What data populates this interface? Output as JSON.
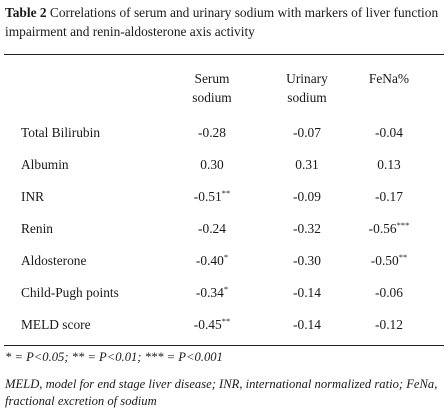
{
  "caption": {
    "label": "Table 2",
    "text": " Correlations of serum and urinary sodium with markers of liver function impairment and renin-aldosterone axis activity"
  },
  "headers": {
    "col1_line1": "Serum",
    "col1_line2": "sodium",
    "col2_line1": "Urinary",
    "col2_line2": "sodium",
    "col3": "FeNa%"
  },
  "rows": [
    {
      "label": "Total Bilirubin",
      "serum": "-0.28",
      "serum_sig": "",
      "urinary": "-0.07",
      "urinary_sig": "",
      "fena": "-0.04",
      "fena_sig": ""
    },
    {
      "label": "Albumin",
      "serum": "0.30",
      "serum_sig": "",
      "urinary": "0.31",
      "urinary_sig": "",
      "fena": "0.13",
      "fena_sig": ""
    },
    {
      "label": "INR",
      "serum": "-0.51",
      "serum_sig": "**",
      "urinary": "-0.09",
      "urinary_sig": "",
      "fena": "-0.17",
      "fena_sig": ""
    },
    {
      "label": "Renin",
      "serum": "-0.24",
      "serum_sig": "",
      "urinary": "-0.32",
      "urinary_sig": "",
      "fena": "-0.56",
      "fena_sig": "***"
    },
    {
      "label": "Aldosterone",
      "serum": "-0.40",
      "serum_sig": "*",
      "urinary": "-0.30",
      "urinary_sig": "",
      "fena": "-0.50",
      "fena_sig": "**"
    },
    {
      "label": "Child-Pugh points",
      "serum": "-0.34",
      "serum_sig": "*",
      "urinary": "-0.14",
      "urinary_sig": "",
      "fena": "-0.06",
      "fena_sig": ""
    },
    {
      "label": "MELD score",
      "serum": "-0.45",
      "serum_sig": "**",
      "urinary": "-0.14",
      "urinary_sig": "",
      "fena": "-0.12",
      "fena_sig": ""
    }
  ],
  "footnotes": {
    "significance": "* = P<0.05; ** = P<0.01; *** = P<0.001",
    "abbreviations": "MELD, model for end stage liver disease; INR, international normalized ratio; FeNa, fractional excretion of sodium"
  }
}
